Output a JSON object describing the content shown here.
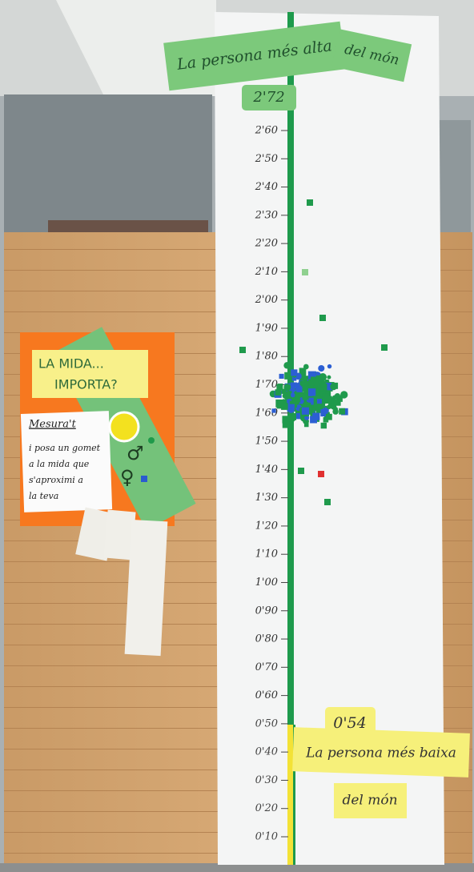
{
  "top_sign": {
    "line1": "La persona més alta",
    "line2": "del món",
    "height": "2'72"
  },
  "ruler": {
    "labels": [
      "2'60",
      "2'50",
      "2'40",
      "2'30",
      "2'20",
      "2'10",
      "2'00",
      "1'90",
      "1'80",
      "1'70",
      "1'60",
      "1'50",
      "1'40",
      "1'30",
      "1'20",
      "1'10",
      "1'00",
      "0'90",
      "0'80",
      "0'70",
      "0'60",
      "0'50",
      "0'40",
      "0'30",
      "0'20",
      "0'10"
    ]
  },
  "bottom_sign": {
    "height": "0'54",
    "line1": "La persona més baixa",
    "line2": "del món"
  },
  "left_poster": {
    "title_line1": "LA MIDA...",
    "title_line2": "IMPORTA?",
    "note_title": "Mesura't",
    "note_lines": [
      "i posa un gomet",
      "a la mida que",
      "s'aproximi a",
      "la teva"
    ],
    "male": "♂",
    "female": "♀"
  }
}
